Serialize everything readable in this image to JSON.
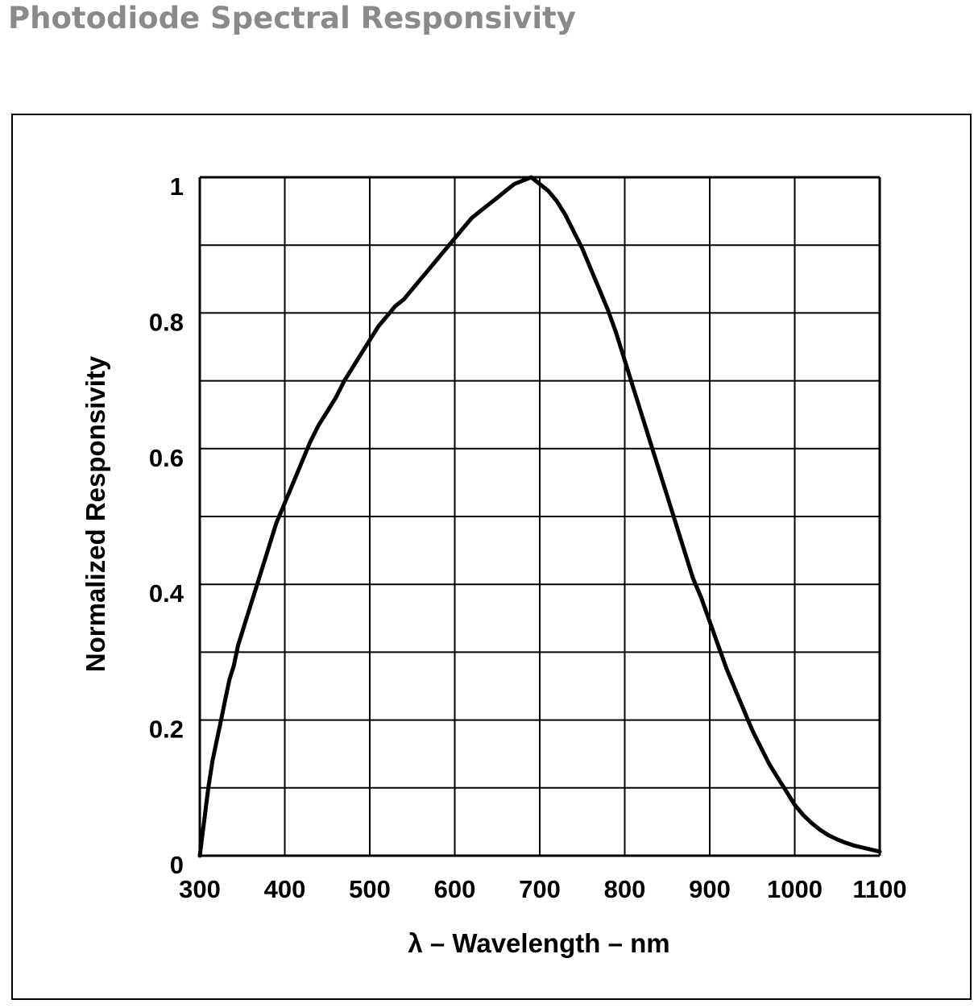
{
  "page_title": "Photodiode Spectral Responsivity",
  "chart_data": {
    "type": "line",
    "title": "",
    "xlabel": "λ – Wavelength – nm",
    "ylabel": "Normalized Responsivity",
    "xlim": [
      300,
      1100
    ],
    "ylim": [
      0,
      1
    ],
    "x_ticks": [
      300,
      400,
      500,
      600,
      700,
      800,
      900,
      1000,
      1100
    ],
    "x_tick_labels": [
      "300",
      "400",
      "500",
      "600",
      "700",
      "800",
      "900",
      "1000",
      "1100"
    ],
    "y_ticks": [
      0,
      0.2,
      0.4,
      0.6,
      0.8,
      1
    ],
    "y_tick_labels": [
      "0",
      "0.2",
      "0.4",
      "0.6",
      "0.8",
      "1"
    ],
    "grid": true,
    "x_minor_step": 100,
    "y_minor_step": 0.1,
    "series": [
      {
        "color": "#000000",
        "x": [
          300,
          305,
          310,
          315,
          320,
          325,
          330,
          335,
          340,
          345,
          350,
          355,
          360,
          365,
          370,
          380,
          390,
          400,
          410,
          420,
          430,
          440,
          450,
          460,
          470,
          480,
          490,
          500,
          510,
          520,
          530,
          540,
          550,
          560,
          570,
          580,
          590,
          600,
          610,
          620,
          630,
          640,
          650,
          660,
          670,
          680,
          690,
          700,
          710,
          720,
          730,
          740,
          750,
          760,
          770,
          780,
          790,
          800,
          810,
          820,
          830,
          840,
          850,
          860,
          870,
          880,
          890,
          900,
          910,
          920,
          930,
          940,
          950,
          960,
          970,
          980,
          990,
          1000,
          1010,
          1020,
          1030,
          1040,
          1050,
          1060,
          1070,
          1080,
          1090,
          1100
        ],
        "y": [
          0.0,
          0.05,
          0.1,
          0.14,
          0.17,
          0.2,
          0.23,
          0.26,
          0.28,
          0.31,
          0.33,
          0.35,
          0.37,
          0.39,
          0.41,
          0.45,
          0.49,
          0.52,
          0.55,
          0.58,
          0.61,
          0.635,
          0.655,
          0.675,
          0.7,
          0.72,
          0.74,
          0.76,
          0.78,
          0.795,
          0.81,
          0.82,
          0.835,
          0.85,
          0.865,
          0.88,
          0.895,
          0.91,
          0.925,
          0.94,
          0.95,
          0.96,
          0.97,
          0.98,
          0.99,
          0.995,
          1.0,
          0.99,
          0.98,
          0.965,
          0.945,
          0.92,
          0.895,
          0.865,
          0.835,
          0.805,
          0.77,
          0.73,
          0.69,
          0.65,
          0.61,
          0.57,
          0.53,
          0.49,
          0.45,
          0.41,
          0.38,
          0.345,
          0.31,
          0.275,
          0.245,
          0.215,
          0.185,
          0.16,
          0.135,
          0.115,
          0.095,
          0.075,
          0.06,
          0.048,
          0.038,
          0.03,
          0.024,
          0.019,
          0.015,
          0.012,
          0.009,
          0.006
        ]
      }
    ]
  }
}
